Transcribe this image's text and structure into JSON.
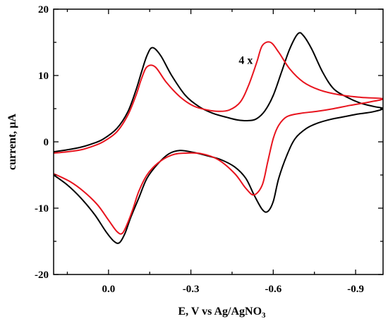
{
  "chart_data": {
    "type": "line",
    "title": "",
    "xlabel": "E, V vs Ag/AgNO",
    "xlabel_sub": "3",
    "ylabel": "current, μA",
    "xlim": [
      0.2,
      -1.0
    ],
    "ylim": [
      -20,
      20
    ],
    "x_ticks": [
      0.0,
      -0.3,
      -0.6,
      -0.9
    ],
    "x_tick_labels": [
      "0.0",
      "-0.3",
      "-0.6",
      "-0.9"
    ],
    "y_ticks": [
      -20,
      -10,
      0,
      10,
      20
    ],
    "y_tick_labels": [
      "-20",
      "-10",
      "0",
      "10",
      "20"
    ],
    "grid": false,
    "annotations": [
      {
        "text": "4 x",
        "x": -0.5,
        "y": 12.3
      }
    ],
    "series": [
      {
        "color": "#000000",
        "x": [
          0.2,
          0.15,
          0.1,
          0.06,
          0.02,
          -0.03,
          -0.07,
          -0.1,
          -0.12,
          -0.14,
          -0.16,
          -0.19,
          -0.23,
          -0.28,
          -0.33,
          -0.38,
          -0.43,
          -0.47,
          -0.51,
          -0.54,
          -0.57,
          -0.6,
          -0.63,
          -0.66,
          -0.69,
          -0.71,
          -0.74,
          -0.78,
          -0.82,
          -0.87,
          -0.92,
          -0.97,
          -1.0,
          -0.96,
          -0.91,
          -0.86,
          -0.81,
          -0.76,
          -0.72,
          -0.68,
          -0.65,
          -0.62,
          -0.6,
          -0.58,
          -0.56,
          -0.53,
          -0.5,
          -0.46,
          -0.41,
          -0.36,
          -0.31,
          -0.26,
          -0.22,
          -0.18,
          -0.14,
          -0.11,
          -0.08,
          -0.06,
          -0.04,
          -0.02,
          0.01,
          0.05,
          0.1,
          0.15,
          0.2
        ],
        "y": [
          -1.5,
          -1.2,
          -0.8,
          -0.3,
          0.4,
          2.0,
          4.5,
          7.8,
          10.5,
          13.0,
          14.2,
          13.0,
          10.0,
          7.0,
          5.3,
          4.3,
          3.7,
          3.3,
          3.2,
          3.5,
          4.7,
          7.0,
          10.5,
          14.0,
          16.3,
          16.0,
          14.0,
          10.5,
          8.0,
          6.7,
          5.8,
          5.3,
          5.0,
          4.5,
          4.2,
          3.8,
          3.4,
          2.8,
          2.0,
          0.5,
          -2.0,
          -5.5,
          -9.0,
          -10.5,
          -10.2,
          -8.0,
          -5.5,
          -3.8,
          -2.7,
          -2.1,
          -1.6,
          -1.3,
          -1.8,
          -3.3,
          -5.5,
          -8.5,
          -11.5,
          -13.8,
          -15.2,
          -15.0,
          -13.5,
          -11.0,
          -8.5,
          -6.5,
          -5.0
        ]
      },
      {
        "color": "#e8141e",
        "x": [
          0.2,
          0.15,
          0.1,
          0.06,
          0.02,
          -0.03,
          -0.07,
          -0.1,
          -0.12,
          -0.14,
          -0.17,
          -0.21,
          -0.26,
          -0.31,
          -0.36,
          -0.4,
          -0.44,
          -0.48,
          -0.51,
          -0.54,
          -0.56,
          -0.59,
          -0.62,
          -0.66,
          -0.71,
          -0.77,
          -0.84,
          -0.92,
          -1.0,
          -0.95,
          -0.88,
          -0.82,
          -0.76,
          -0.7,
          -0.65,
          -0.62,
          -0.6,
          -0.58,
          -0.56,
          -0.53,
          -0.5,
          -0.46,
          -0.4,
          -0.34,
          -0.28,
          -0.23,
          -0.18,
          -0.14,
          -0.11,
          -0.09,
          -0.07,
          -0.05,
          -0.03,
          0.0,
          0.04,
          0.09,
          0.14,
          0.2
        ],
        "y": [
          -1.7,
          -1.5,
          -1.2,
          -0.7,
          0.0,
          1.5,
          4.0,
          7.0,
          9.5,
          11.3,
          11.3,
          9.0,
          6.8,
          5.4,
          4.8,
          4.6,
          4.8,
          6.0,
          8.5,
          12.0,
          14.5,
          15.0,
          13.5,
          11.0,
          9.0,
          7.8,
          7.1,
          6.7,
          6.5,
          6.0,
          5.5,
          5.0,
          4.6,
          4.3,
          3.8,
          2.5,
          0.5,
          -3.0,
          -6.5,
          -8.0,
          -7.0,
          -4.8,
          -2.7,
          -1.8,
          -1.7,
          -2.0,
          -3.2,
          -5.0,
          -7.5,
          -10.0,
          -12.2,
          -13.8,
          -13.5,
          -11.8,
          -9.5,
          -7.5,
          -6.0,
          -4.8
        ]
      }
    ]
  }
}
